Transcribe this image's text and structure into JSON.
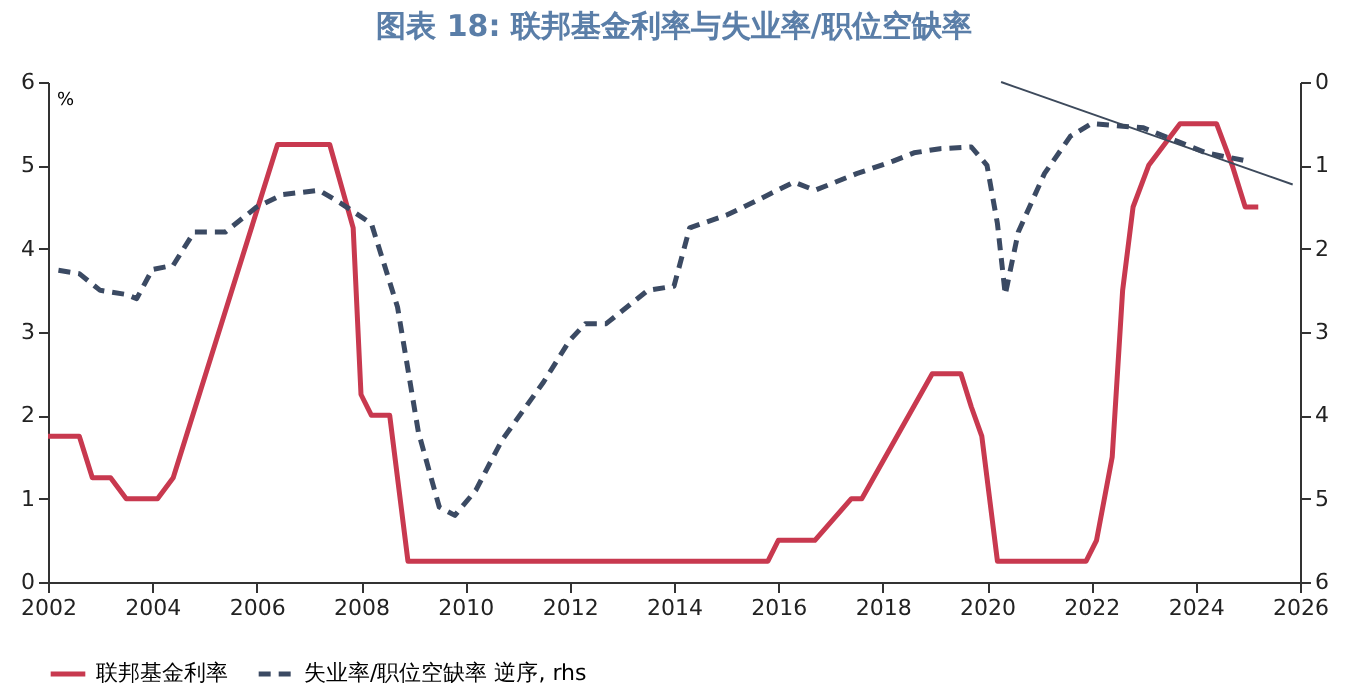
{
  "chart_data": {
    "type": "line",
    "title": "图表 18: 联邦基金利率与失业率/职位空缺率",
    "ylabel": "%",
    "xlim": [
      2002,
      2026
    ],
    "xticks": [
      2002,
      2004,
      2006,
      2008,
      2010,
      2012,
      2014,
      2016,
      2018,
      2020,
      2022,
      2024,
      2026
    ],
    "ylim": [
      0,
      6
    ],
    "yticks": [
      0,
      1,
      2,
      3,
      4,
      5,
      6
    ],
    "y2lim": [
      6,
      0
    ],
    "y2ticks": [
      0,
      1,
      2,
      3,
      4,
      5,
      6
    ],
    "legend": "bottom",
    "marker": "none",
    "grid": false,
    "series": [
      {
        "name": "联邦基金利率",
        "color": "#c8394f",
        "line_style": "solid",
        "x": [
          2002,
          2002.6,
          2002.85,
          2003.2,
          2003.5,
          2004.1,
          2004.4,
          2006.4,
          2007.4,
          2007.85,
          2008,
          2008.2,
          2008.55,
          2008.9,
          2015.8,
          2016,
          2016.7,
          2017.4,
          2017.6,
          2018.95,
          2019.5,
          2019.7,
          2019.9,
          2020.2,
          2021.9,
          2022.1,
          2022.4,
          2022.6,
          2022.8,
          2023.1,
          2023.7,
          2024.4,
          2024.7,
          2024.95,
          2025.2
        ],
        "values": [
          1.75,
          1.75,
          1.25,
          1.25,
          1,
          1,
          1.25,
          5.25,
          5.25,
          4.25,
          2.25,
          2,
          2,
          0.25,
          0.25,
          0.5,
          0.5,
          1,
          1,
          2.5,
          2.5,
          2.1,
          1.75,
          0.25,
          0.25,
          0.5,
          1.5,
          3.5,
          4.5,
          5,
          5.5,
          5.5,
          5,
          4.5,
          4.5
        ]
      },
      {
        "name": "失业率/职位空缺率 逆序, rhs",
        "color": "#3b4a63",
        "line_style": "dashed",
        "axis": "y2",
        "x": [
          2002.2,
          2002.6,
          2003,
          2003.5,
          2003.7,
          2004,
          2004.4,
          2004.8,
          2005.4,
          2006,
          2006.5,
          2007.2,
          2007.6,
          2008.2,
          2008.7,
          2009.1,
          2009.5,
          2009.8,
          2010.2,
          2010.7,
          2011.5,
          2012,
          2012.3,
          2012.7,
          2013.5,
          2014,
          2014.3,
          2015,
          2015.5,
          2016.3,
          2016.7,
          2017.5,
          2018.2,
          2018.6,
          2019.1,
          2019.7,
          2020,
          2020.2,
          2020.35,
          2020.6,
          2021.1,
          2021.6,
          2022,
          2023,
          2023.6,
          2024.2,
          2025
        ],
        "values": [
          2.26,
          2.3,
          2.5,
          2.55,
          2.6,
          2.25,
          2.2,
          1.8,
          1.8,
          1.5,
          1.35,
          1.3,
          1.45,
          1.7,
          2.7,
          4.2,
          5.1,
          5.2,
          4.9,
          4.3,
          3.6,
          3.1,
          2.9,
          2.9,
          2.5,
          2.45,
          1.75,
          1.6,
          1.45,
          1.2,
          1.3,
          1.1,
          0.95,
          0.85,
          0.8,
          0.78,
          1,
          1.7,
          2.55,
          1.8,
          1.1,
          0.65,
          0.5,
          0.55,
          0.7,
          0.85,
          0.95
        ]
      },
      {
        "type": "line",
        "color": "#3d4a5c",
        "line_style": "solid",
        "axis": "y2",
        "x": [
          2020.27,
          2025.86
        ],
        "values": [
          0,
          1.23
        ]
      }
    ]
  }
}
